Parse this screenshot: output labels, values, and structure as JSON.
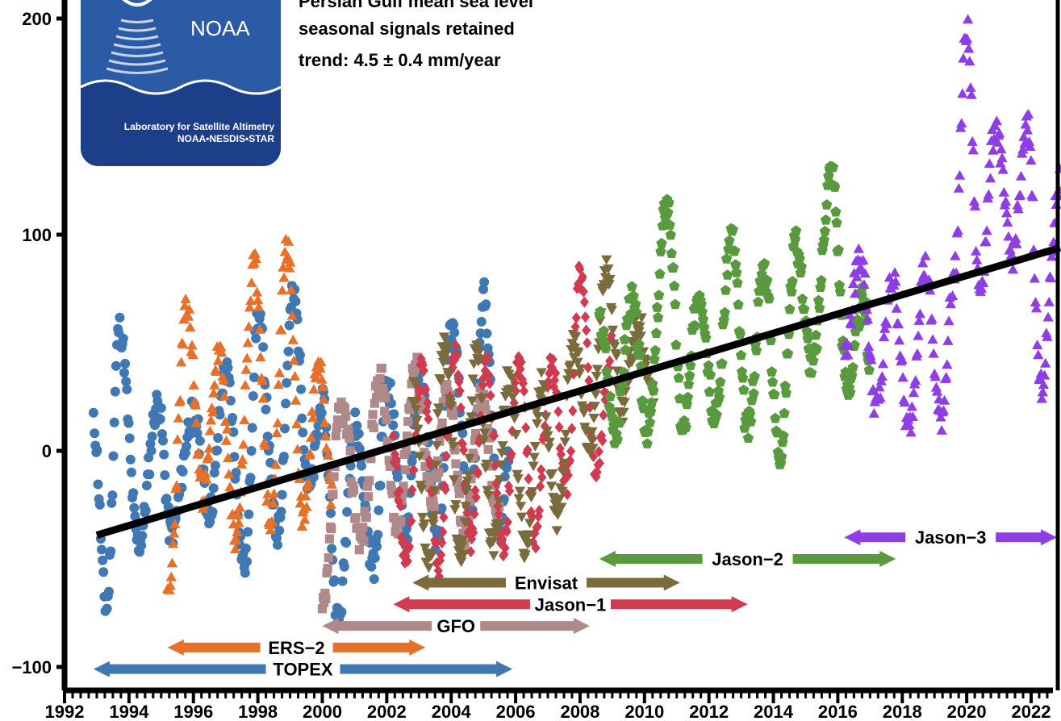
{
  "logo": {
    "name": "NOAA",
    "lab_line1": "Laboratory for Satellite Altimetry",
    "lab_line2": "NOAA•NESDIS•STAR"
  },
  "info": {
    "title": "Persian Gulf mean sea level",
    "subtitle": "seasonal signals retained",
    "trend": "trend:  4.5 ± 0.4 mm/year"
  },
  "chart_data": {
    "type": "scatter",
    "xlim": [
      1992,
      2023
    ],
    "ylim": [
      -110,
      220
    ],
    "x_ticks": [
      1992,
      1994,
      1996,
      1998,
      2000,
      2002,
      2004,
      2006,
      2008,
      2010,
      2012,
      2014,
      2016,
      2018,
      2020,
      2022
    ],
    "y_ticks": [
      -100,
      0,
      100,
      200
    ],
    "y_tick_labels": [
      "−100",
      "0",
      "100",
      "200"
    ],
    "grid": false,
    "trend_line": {
      "x": [
        1993.0,
        2022.9
      ],
      "y": [
        -39,
        94
      ],
      "color": "#000000"
    },
    "series": [
      {
        "name": "TOPEX",
        "marker": "circle",
        "color": "#3f78b3",
        "start": 1992.9,
        "end": 2005.8,
        "seed": 11,
        "offset": 2,
        "anchors": [
          [
            1992.9,
            10
          ],
          [
            1993.3,
            -75
          ],
          [
            1993.7,
            55
          ],
          [
            1994.3,
            -45
          ],
          [
            1994.9,
            20
          ],
          [
            1995.3,
            -40
          ],
          [
            1996.0,
            15
          ],
          [
            1996.5,
            -30
          ],
          [
            1997.0,
            35
          ],
          [
            1997.6,
            -55
          ],
          [
            1998.0,
            60
          ],
          [
            1998.6,
            -40
          ],
          [
            1999.1,
            70
          ],
          [
            1999.6,
            -20
          ],
          [
            2000.0,
            20
          ],
          [
            2000.5,
            -80
          ],
          [
            2001.0,
            10
          ],
          [
            2001.6,
            -55
          ],
          [
            2002.0,
            30
          ],
          [
            2002.6,
            -40
          ],
          [
            2003.0,
            35
          ],
          [
            2003.6,
            -45
          ],
          [
            2004.0,
            55
          ],
          [
            2004.6,
            -30
          ],
          [
            2005.0,
            70
          ],
          [
            2005.5,
            -40
          ],
          [
            2005.8,
            0
          ]
        ]
      },
      {
        "name": "ERS-2",
        "marker": "triangle",
        "color": "#e8712a",
        "start": 1995.2,
        "end": 2000.3,
        "seed": 23,
        "offset": 0,
        "anchors": [
          [
            1995.2,
            -70
          ],
          [
            1995.8,
            65
          ],
          [
            1996.3,
            -20
          ],
          [
            1996.8,
            45
          ],
          [
            1997.3,
            -40
          ],
          [
            1997.9,
            85
          ],
          [
            1998.4,
            -35
          ],
          [
            1998.9,
            95
          ],
          [
            1999.4,
            -30
          ],
          [
            1999.9,
            45
          ],
          [
            2000.3,
            -20
          ]
        ]
      },
      {
        "name": "GFO",
        "marker": "square",
        "color": "#b08a8a",
        "start": 2000.0,
        "end": 2005.5,
        "seed": 37,
        "offset": 0,
        "anchors": [
          [
            2000.0,
            -75
          ],
          [
            2000.6,
            20
          ],
          [
            2001.2,
            -40
          ],
          [
            2001.8,
            35
          ],
          [
            2002.3,
            -35
          ],
          [
            2002.9,
            40
          ],
          [
            2003.4,
            -25
          ],
          [
            2003.9,
            30
          ],
          [
            2004.4,
            -40
          ],
          [
            2004.9,
            25
          ],
          [
            2005.5,
            -30
          ]
        ]
      },
      {
        "name": "Jason-1",
        "marker": "diamond",
        "color": "#d13a4f",
        "start": 2002.2,
        "end": 2009.0,
        "seed": 41,
        "offset": 0,
        "anchors": [
          [
            2002.2,
            0
          ],
          [
            2002.6,
            -50
          ],
          [
            2003.1,
            40
          ],
          [
            2003.6,
            -55
          ],
          [
            2004.1,
            45
          ],
          [
            2004.6,
            -40
          ],
          [
            2005.1,
            40
          ],
          [
            2005.6,
            -45
          ],
          [
            2006.1,
            40
          ],
          [
            2006.6,
            -40
          ],
          [
            2007.1,
            40
          ],
          [
            2007.6,
            -15
          ],
          [
            2008.0,
            80
          ],
          [
            2008.5,
            -10
          ],
          [
            2009.0,
            50
          ]
        ]
      },
      {
        "name": "Envisat",
        "marker": "triangle-down",
        "color": "#7a6a3c",
        "start": 2002.8,
        "end": 2010.3,
        "seed": 53,
        "offset": 0,
        "anchors": [
          [
            2002.8,
            30
          ],
          [
            2003.3,
            -50
          ],
          [
            2003.8,
            50
          ],
          [
            2004.3,
            -50
          ],
          [
            2004.8,
            45
          ],
          [
            2005.3,
            -45
          ],
          [
            2005.8,
            35
          ],
          [
            2006.3,
            -45
          ],
          [
            2006.8,
            30
          ],
          [
            2007.3,
            -30
          ],
          [
            2007.8,
            50
          ],
          [
            2008.3,
            0
          ],
          [
            2008.8,
            85
          ],
          [
            2009.3,
            20
          ],
          [
            2009.8,
            60
          ],
          [
            2010.3,
            20
          ]
        ]
      },
      {
        "name": "Jason-2",
        "marker": "pentagon",
        "color": "#5a9a3e",
        "start": 2008.6,
        "end": 2017.0,
        "seed": 67,
        "offset": 0,
        "anchors": [
          [
            2008.6,
            60
          ],
          [
            2009.1,
            10
          ],
          [
            2009.6,
            70
          ],
          [
            2010.1,
            10
          ],
          [
            2010.7,
            115
          ],
          [
            2011.2,
            10
          ],
          [
            2011.7,
            75
          ],
          [
            2012.2,
            15
          ],
          [
            2012.7,
            100
          ],
          [
            2013.2,
            10
          ],
          [
            2013.7,
            85
          ],
          [
            2014.2,
            0
          ],
          [
            2014.7,
            95
          ],
          [
            2015.2,
            40
          ],
          [
            2015.8,
            130
          ],
          [
            2016.3,
            30
          ],
          [
            2016.8,
            70
          ],
          [
            2017.0,
            40
          ]
        ]
      },
      {
        "name": "Jason-3",
        "marker": "triangle",
        "color": "#8f3ee6",
        "start": 2016.2,
        "end": 2022.9,
        "seed": 79,
        "offset": 0,
        "anchors": [
          [
            2016.2,
            45
          ],
          [
            2016.7,
            90
          ],
          [
            2017.2,
            20
          ],
          [
            2017.7,
            80
          ],
          [
            2018.2,
            10
          ],
          [
            2018.7,
            85
          ],
          [
            2019.2,
            15
          ],
          [
            2019.6,
            80
          ],
          [
            2020.0,
            195
          ],
          [
            2020.4,
            75
          ],
          [
            2020.9,
            150
          ],
          [
            2021.4,
            90
          ],
          [
            2021.9,
            150
          ],
          [
            2022.3,
            30
          ],
          [
            2022.9,
            125
          ]
        ]
      }
    ],
    "missions": [
      {
        "name": "TOPEX",
        "label": "TOPEX",
        "color": "#3f78b3",
        "start": 1992.9,
        "end": 2005.9,
        "y": -101
      },
      {
        "name": "ERS-2",
        "label": "ERS−2",
        "color": "#e8712a",
        "start": 1995.2,
        "end": 2003.2,
        "y": -91
      },
      {
        "name": "GFO",
        "label": "GFO",
        "color": "#b08a8a",
        "start": 2000.0,
        "end": 2008.3,
        "y": -81
      },
      {
        "name": "Jason-1",
        "label": "Jason−1",
        "color": "#d13a4f",
        "start": 2002.2,
        "end": 2013.2,
        "y": -71
      },
      {
        "name": "Envisat",
        "label": "Envisat",
        "color": "#7a6a3c",
        "start": 2002.8,
        "end": 2011.1,
        "y": -61
      },
      {
        "name": "Jason-2",
        "label": "Jason−2",
        "color": "#5a9a3e",
        "start": 2008.6,
        "end": 2017.8,
        "y": -50
      },
      {
        "name": "Jason-3",
        "label": "Jason−3",
        "color": "#8f3ee6",
        "start": 2016.2,
        "end": 2022.8,
        "y": -40
      }
    ]
  }
}
